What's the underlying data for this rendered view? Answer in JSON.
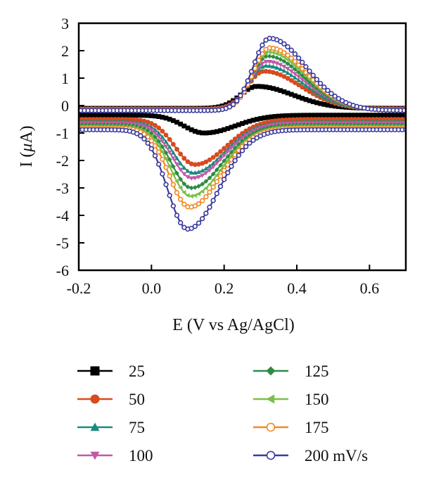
{
  "chart_data": {
    "type": "line",
    "title": "",
    "xlabel": "E (V vs Ag/AgCl)",
    "ylabel_prefix": "I (",
    "ylabel_symbol": "μ",
    "ylabel_suffix": "A)",
    "xlim": [
      -0.2,
      0.7
    ],
    "ylim": [
      -6,
      3
    ],
    "xticks": [
      -0.2,
      0.0,
      0.2,
      0.4,
      0.6
    ],
    "xtick_labels": [
      "-0.2",
      "0.0",
      "0.2",
      "0.4",
      "0.6"
    ],
    "yticks": [
      -6,
      -5,
      -4,
      -3,
      -2,
      -1,
      0,
      1,
      2,
      3
    ],
    "ytick_labels": [
      "-6",
      "-5",
      "-4",
      "-3",
      "-2",
      "-1",
      "0",
      "1",
      "2",
      "3"
    ],
    "grid": false,
    "legend_position": "bottom",
    "series": [
      {
        "name": "25",
        "scan_rate": 25,
        "color": "#000000",
        "marker": "square-filled",
        "anodic_peak": {
          "E": 0.29,
          "I": 0.7
        },
        "cathodic_peak": {
          "E": 0.145,
          "I": -1.0
        },
        "baseline_forward": -0.35,
        "baseline_reverse": -0.1
      },
      {
        "name": "50",
        "scan_rate": 50,
        "color": "#d94a1f",
        "marker": "circle-filled",
        "anodic_peak": {
          "E": 0.31,
          "I": 1.25
        },
        "cathodic_peak": {
          "E": 0.12,
          "I": -2.15
        },
        "baseline_forward": -0.5,
        "baseline_reverse": -0.12
      },
      {
        "name": "75",
        "scan_rate": 75,
        "color": "#1b8a7e",
        "marker": "triangle-up-filled",
        "anodic_peak": {
          "E": 0.315,
          "I": 1.45
        },
        "cathodic_peak": {
          "E": 0.115,
          "I": -2.45
        },
        "baseline_forward": -0.58,
        "baseline_reverse": -0.13
      },
      {
        "name": "100",
        "scan_rate": 100,
        "color": "#c05aa8",
        "marker": "triangle-down-filled",
        "anodic_peak": {
          "E": 0.318,
          "I": 1.6
        },
        "cathodic_peak": {
          "E": 0.112,
          "I": -2.65
        },
        "baseline_forward": -0.64,
        "baseline_reverse": -0.14
      },
      {
        "name": "125",
        "scan_rate": 125,
        "color": "#2e8b45",
        "marker": "diamond-filled",
        "anodic_peak": {
          "E": 0.32,
          "I": 1.8
        },
        "cathodic_peak": {
          "E": 0.11,
          "I": -3.0
        },
        "baseline_forward": -0.7,
        "baseline_reverse": -0.15
      },
      {
        "name": "150",
        "scan_rate": 150,
        "color": "#7bbf4a",
        "marker": "triangle-left-filled",
        "anodic_peak": {
          "E": 0.322,
          "I": 1.95
        },
        "cathodic_peak": {
          "E": 0.108,
          "I": -3.3
        },
        "baseline_forward": -0.76,
        "baseline_reverse": -0.16
      },
      {
        "name": "175",
        "scan_rate": 175,
        "color": "#f08a24",
        "marker": "circle-open",
        "anodic_peak": {
          "E": 0.325,
          "I": 2.1
        },
        "cathodic_peak": {
          "E": 0.105,
          "I": -3.7
        },
        "baseline_forward": -0.82,
        "baseline_reverse": -0.17
      },
      {
        "name": "200 mV/s",
        "scan_rate": 200,
        "color": "#3a3aa0",
        "marker": "circle-open",
        "anodic_peak": {
          "E": 0.325,
          "I": 2.45
        },
        "cathodic_peak": {
          "E": 0.1,
          "I": -4.5
        },
        "baseline_forward": -0.88,
        "baseline_reverse": -0.18
      }
    ]
  }
}
